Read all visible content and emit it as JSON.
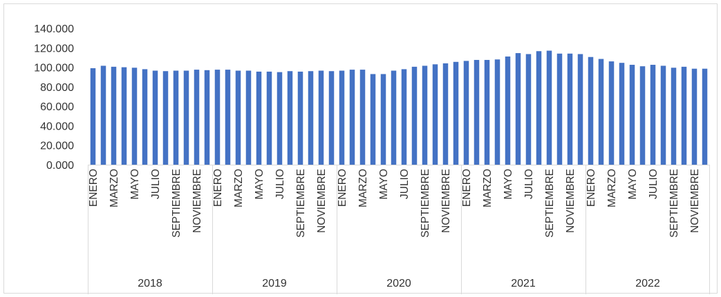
{
  "chart_data": {
    "type": "bar",
    "title": "",
    "xlabel": "",
    "ylabel": "",
    "ylim": [
      0,
      140000
    ],
    "y_ticks": [
      0,
      20000,
      40000,
      60000,
      80000,
      100000,
      120000,
      140000
    ],
    "y_tick_labels": [
      "0.000",
      "20.000",
      "40.000",
      "60.000",
      "80.000",
      "100.000",
      "120.000",
      "140.000"
    ],
    "grid": false,
    "bar_color": "#4472C4",
    "groups": [
      "2018",
      "2019",
      "2020",
      "2021",
      "2022"
    ],
    "month_labels": [
      "ENERO",
      "",
      "MARZO",
      "",
      "MAYO",
      "",
      "JULIO",
      "",
      "SEPTIEMBRE",
      "",
      "NOVIEMBRE",
      ""
    ],
    "series": [
      {
        "values": [
          99000,
          101500,
          100500,
          100000,
          99500,
          98000,
          96500,
          96000,
          96500,
          96500,
          97500,
          97000,
          97500,
          97500,
          96500,
          96500,
          95500,
          95500,
          95000,
          96000,
          95500,
          96000,
          96500,
          96000,
          96500,
          97500,
          97500,
          93000,
          93000,
          96500,
          98000,
          100500,
          101500,
          103000,
          104000,
          105500,
          106500,
          107500,
          107500,
          108000,
          111000,
          114500,
          113500,
          116500,
          117000,
          114000,
          114000,
          113500,
          110500,
          108500,
          106000,
          104500,
          102500,
          101000,
          102500,
          101500,
          99500,
          100500,
          98500,
          98500
        ]
      }
    ]
  }
}
